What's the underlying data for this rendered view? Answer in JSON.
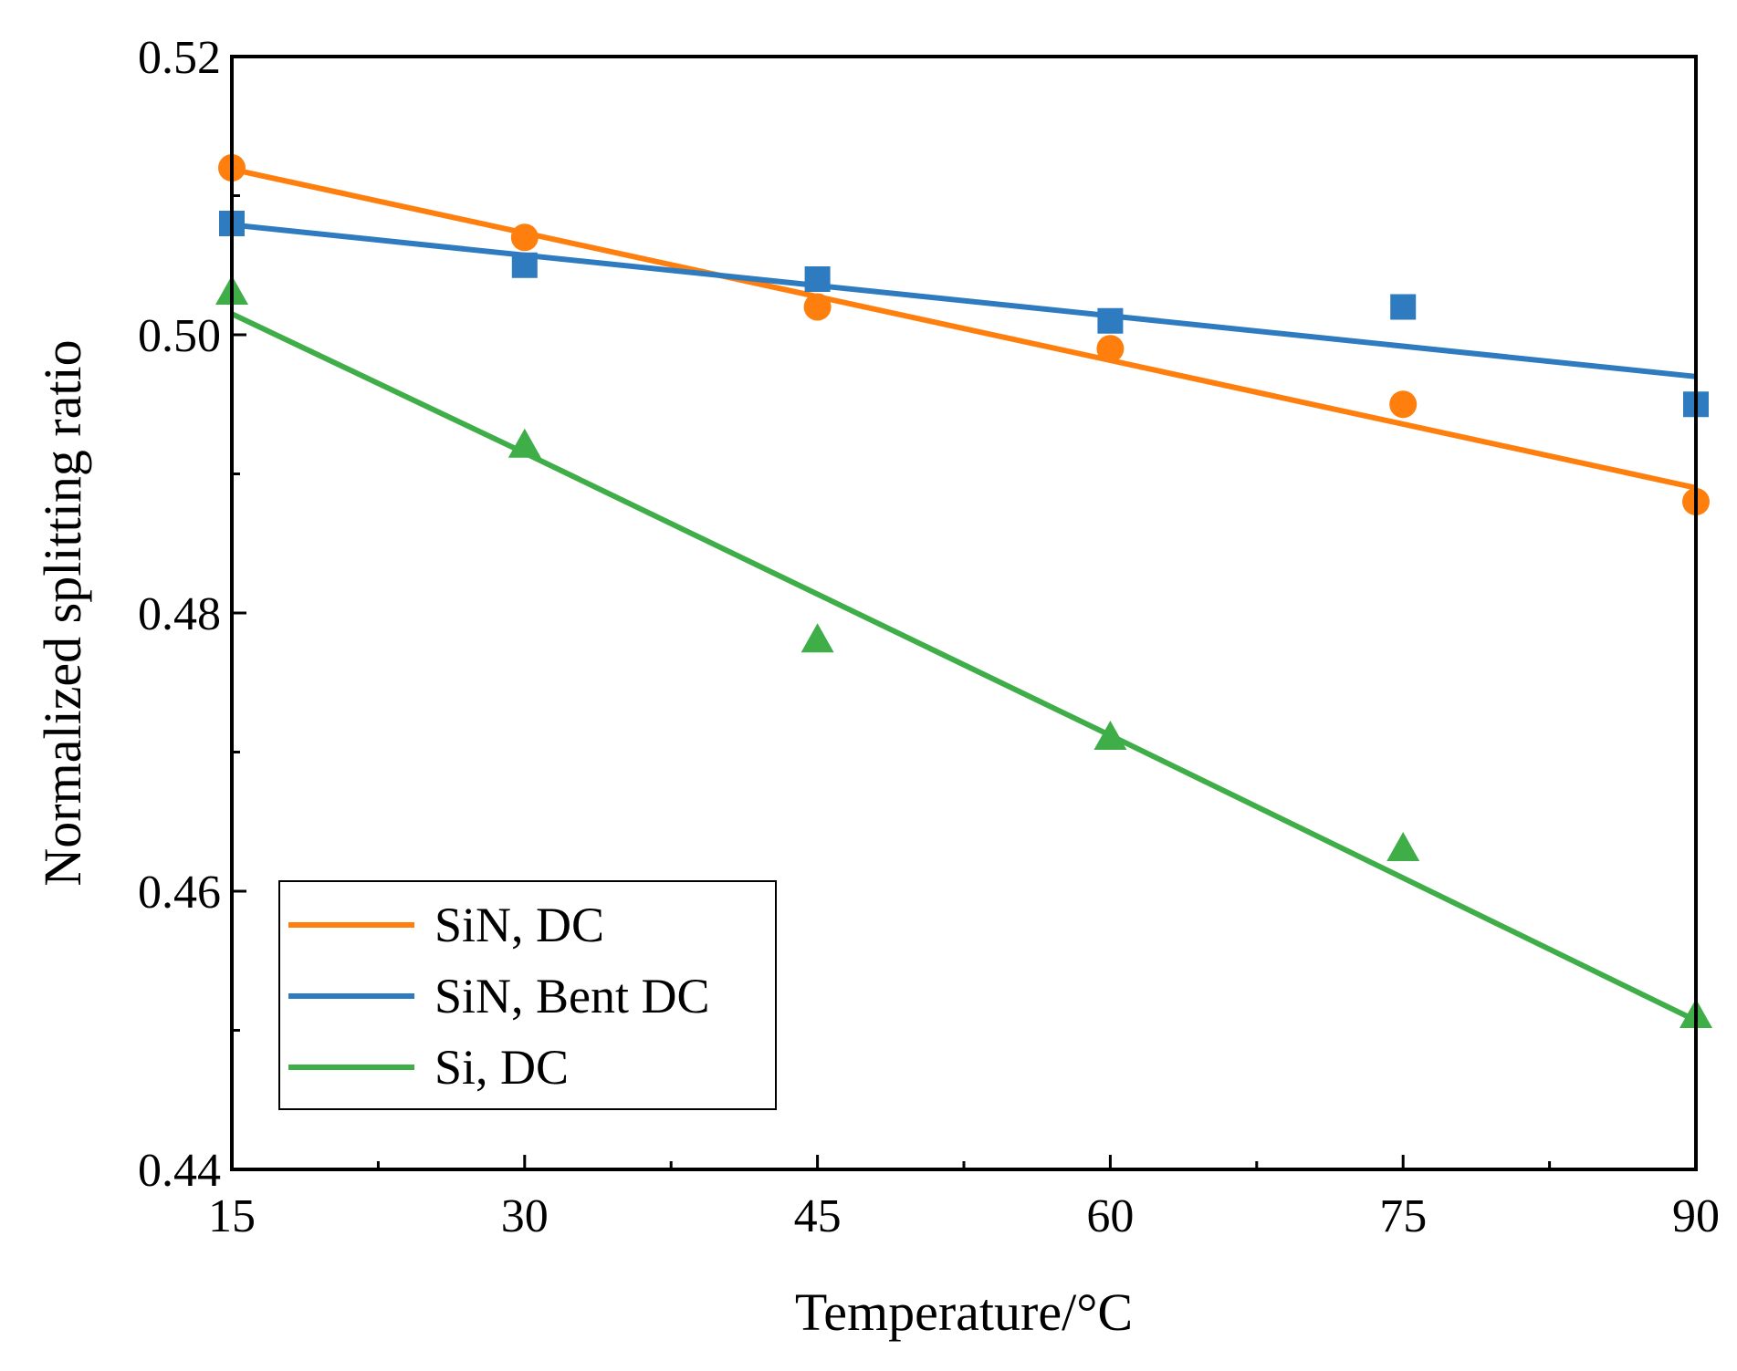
{
  "chart_data": {
    "type": "scatter",
    "title": "",
    "xlabel": "Temperature/°C",
    "ylabel": "Normalized splitting ratio",
    "xlim": [
      15,
      90
    ],
    "ylim": [
      0.44,
      0.52
    ],
    "x_ticks": [
      "15",
      "30",
      "45",
      "60",
      "75",
      "90"
    ],
    "y_ticks": [
      "0.44",
      "0.46",
      "0.48",
      "0.50",
      "0.52"
    ],
    "grid": false,
    "legend_position": "bottom-left",
    "series": [
      {
        "name": "SiN, DC",
        "color": "#ff7f0e",
        "marker": "circle",
        "x": [
          15,
          30,
          45,
          60,
          75,
          90
        ],
        "y": [
          0.512,
          0.507,
          0.502,
          0.499,
          0.495,
          0.488
        ],
        "fit": [
          [
            15,
            0.5119
          ],
          [
            90,
            0.489
          ]
        ]
      },
      {
        "name": "SiN, Bent DC",
        "color": "#2e7bbf",
        "marker": "square",
        "x": [
          15,
          30,
          45,
          60,
          75,
          90
        ],
        "y": [
          0.508,
          0.505,
          0.504,
          0.501,
          0.502,
          0.495
        ],
        "fit": [
          [
            15,
            0.5079
          ],
          [
            90,
            0.497
          ]
        ]
      },
      {
        "name": "Si, DC",
        "color": "#3fae49",
        "marker": "triangle",
        "x": [
          15,
          30,
          45,
          60,
          75,
          90
        ],
        "y": [
          0.503,
          0.492,
          0.478,
          0.471,
          0.463,
          0.451
        ],
        "fit": [
          [
            15,
            0.5015
          ],
          [
            30,
            0.4915
          ],
          [
            60,
            0.4712
          ],
          [
            90,
            0.4507
          ]
        ]
      }
    ]
  }
}
